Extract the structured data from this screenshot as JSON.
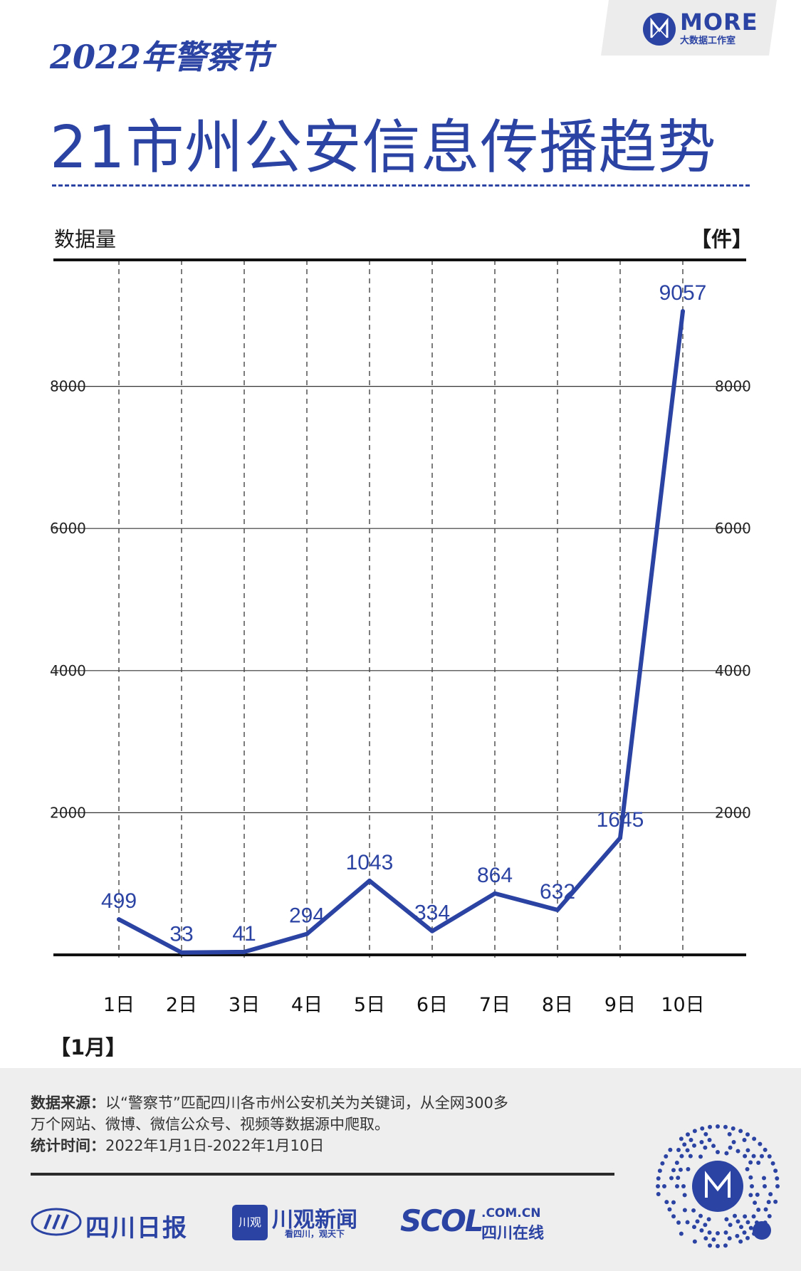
{
  "header": {
    "year_title": "2022年警察节",
    "main_title": "21市州公安信息传播趋势",
    "logo_word": "MORE",
    "logo_sub": "大数据工作室"
  },
  "labels": {
    "y_unit_left": "数据量",
    "y_unit_right": "【件】",
    "x_unit": "【1月】"
  },
  "chart_data": {
    "type": "line",
    "categories": [
      "1日",
      "2日",
      "3日",
      "4日",
      "5日",
      "6日",
      "7日",
      "8日",
      "9日",
      "10日"
    ],
    "values": [
      499,
      33,
      41,
      294,
      1043,
      334,
      864,
      632,
      1645,
      9057
    ],
    "yticks": [
      2000,
      4000,
      6000,
      8000
    ],
    "ylim": [
      0,
      10000
    ],
    "grid": true,
    "color": "#2b43a3"
  },
  "footer": {
    "source_label": "数据来源：",
    "source_text_1": "以“警察节”匹配四川各市州公安机关为关键词，从全网300多",
    "source_text_2": "万个网站、微博、微信公众号、视频等数据源中爬取。",
    "period_label": "统计时间：",
    "period_text": "2022年1月1日-2022年1月10日",
    "brand_1": "四川日报",
    "brand_2": "川观新闻",
    "brand_2_badge": "川观",
    "brand_2_sub": "看四川，观天下",
    "brand_3_main": "SCOL",
    "brand_3_domain": ".COM.CN",
    "brand_3_sub": "四川在线"
  }
}
